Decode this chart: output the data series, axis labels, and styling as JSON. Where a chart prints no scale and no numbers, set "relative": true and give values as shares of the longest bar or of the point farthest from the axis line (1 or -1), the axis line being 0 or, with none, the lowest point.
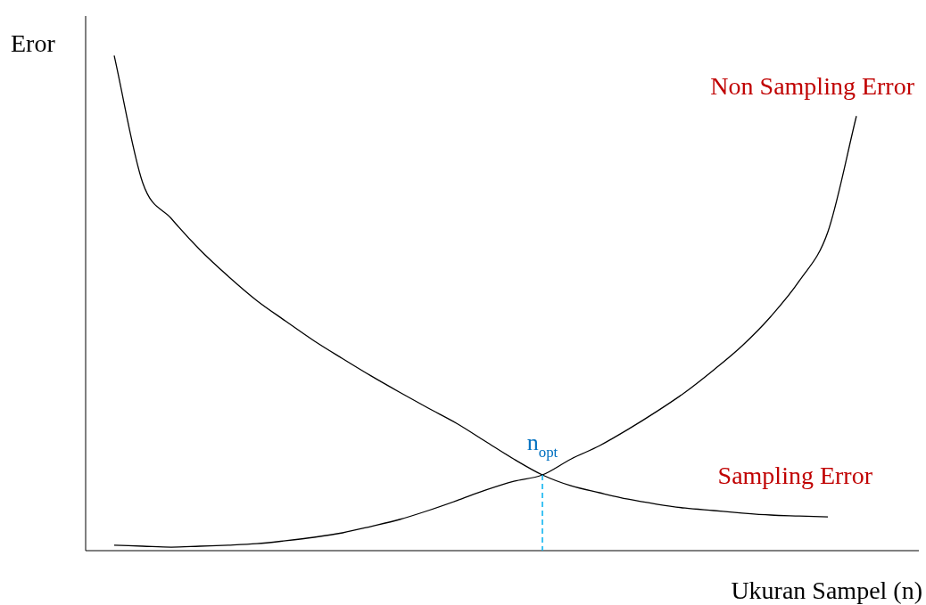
{
  "chart_data": {
    "type": "line",
    "relative": true,
    "xlabel": "Ukuran Sampel (n)",
    "ylabel": "Eror",
    "categories": [
      null,
      null,
      null,
      null,
      null,
      null,
      null,
      null,
      null,
      null,
      null,
      null,
      null,
      null,
      null,
      null,
      null,
      null,
      null,
      null,
      null,
      null,
      null,
      null,
      null,
      null,
      null,
      null,
      null,
      null
    ],
    "series": [
      {
        "name": "Sampling Error",
        "color": "#000000",
        "values": [
          null,
          1,
          0.743,
          0.671,
          0.608,
          0.554,
          0.505,
          0.464,
          0.424,
          0.388,
          0.353,
          0.32,
          0.288,
          0.257,
          0.221,
          0.185,
          0.153,
          0.131,
          0.117,
          0.104,
          0.094,
          0.086,
          0.081,
          0.076,
          0.072,
          0.07,
          0.068,
          null,
          null,
          null
        ]
      },
      {
        "name": "Non Sampling Error",
        "color": "#000000",
        "values": [
          null,
          0.011,
          0.009,
          0.007,
          0.009,
          0.011,
          0.014,
          0.02,
          0.027,
          0.036,
          0.049,
          0.063,
          0.081,
          0.101,
          0.122,
          0.14,
          0.153,
          0.185,
          0.212,
          0.245,
          0.281,
          0.32,
          0.365,
          0.414,
          0.473,
          0.545,
          0.644,
          0.878,
          null,
          null
        ]
      }
    ],
    "annotations": [
      {
        "text": "n$_{opt}$",
        "y": 0.153
      }
    ],
    "legend": false,
    "marker": "none",
    "line_style": "solid"
  }
}
